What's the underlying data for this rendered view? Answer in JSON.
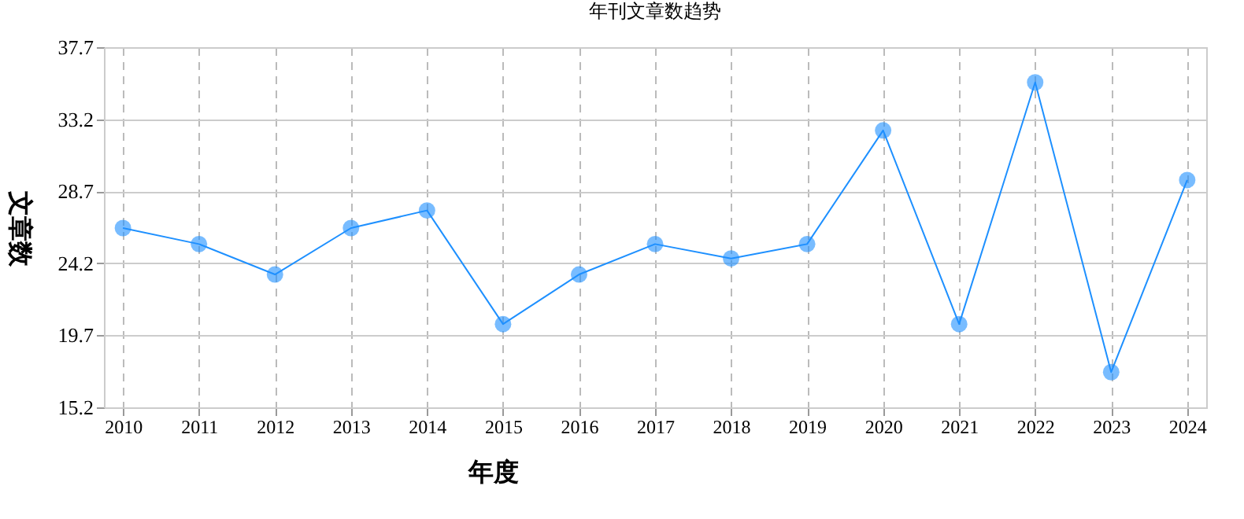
{
  "chart_data": {
    "type": "line",
    "title": "年刊文章数趋势",
    "xlabel": "年度",
    "ylabel": "文章数",
    "categories": [
      "2010",
      "2011",
      "2012",
      "2013",
      "2014",
      "2015",
      "2016",
      "2017",
      "2018",
      "2019",
      "2020",
      "2021",
      "2022",
      "2023",
      "2024"
    ],
    "series": [
      {
        "color": "#1e90ff",
        "values": [
          26.4,
          25.4,
          23.5,
          26.4,
          27.5,
          20.4,
          23.5,
          25.4,
          24.5,
          25.4,
          32.5,
          20.4,
          35.5,
          17.4,
          29.4
        ]
      }
    ],
    "ylim": [
      15.2,
      37.7
    ],
    "yticks": [
      15.2,
      19.7,
      24.2,
      28.7,
      33.2,
      37.7
    ],
    "grid": true,
    "marker": "circle",
    "line_style": "solid"
  }
}
